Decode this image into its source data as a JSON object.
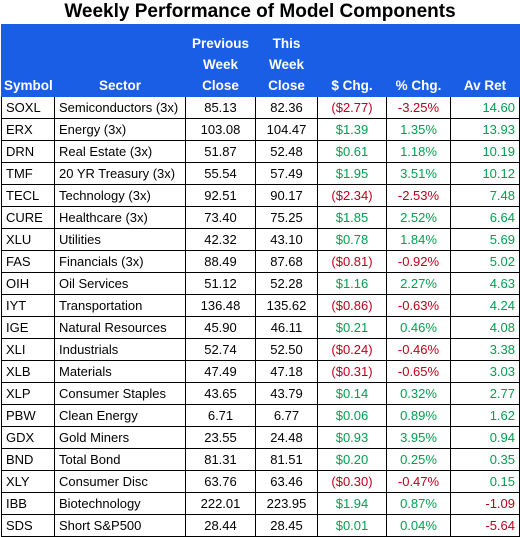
{
  "title": "Weekly Performance of Model Components",
  "headers": {
    "symbol": "Symbol",
    "sector": "Sector",
    "prev_line1": "Previous",
    "prev_line2": "Week",
    "prev_line3": "Close",
    "this_line1": "This",
    "this_line2": "Week",
    "this_line3": "Close",
    "chg": "$ Chg.",
    "pct": "% Chg.",
    "avret": "Av Ret"
  },
  "colors": {
    "header_bg": "#1a5ee6",
    "positive": "#00a050",
    "negative": "#c0001a"
  },
  "rows": [
    {
      "symbol": "SOXL",
      "sector": "Semiconductors (3x)",
      "prev": "85.13",
      "cur": "82.36",
      "chg": "($2.77)",
      "pct": "-3.25%",
      "avret": "14.60"
    },
    {
      "symbol": "ERX",
      "sector": "Energy (3x)",
      "prev": "103.08",
      "cur": "104.47",
      "chg": "$1.39",
      "pct": "1.35%",
      "avret": "13.93"
    },
    {
      "symbol": "DRN",
      "sector": "Real Estate (3x)",
      "prev": "51.87",
      "cur": "52.48",
      "chg": "$0.61",
      "pct": "1.18%",
      "avret": "10.19"
    },
    {
      "symbol": "TMF",
      "sector": "20 YR Treasury (3x)",
      "prev": "55.54",
      "cur": "57.49",
      "chg": "$1.95",
      "pct": "3.51%",
      "avret": "10.12"
    },
    {
      "symbol": "TECL",
      "sector": "Technology (3x)",
      "prev": "92.51",
      "cur": "90.17",
      "chg": "($2.34)",
      "pct": "-2.53%",
      "avret": "7.48"
    },
    {
      "symbol": "CURE",
      "sector": "Healthcare (3x)",
      "prev": "73.40",
      "cur": "75.25",
      "chg": "$1.85",
      "pct": "2.52%",
      "avret": "6.64"
    },
    {
      "symbol": "XLU",
      "sector": "Utilities",
      "prev": "42.32",
      "cur": "43.10",
      "chg": "$0.78",
      "pct": "1.84%",
      "avret": "5.69"
    },
    {
      "symbol": "FAS",
      "sector": "Financials (3x)",
      "prev": "88.49",
      "cur": "87.68",
      "chg": "($0.81)",
      "pct": "-0.92%",
      "avret": "5.02"
    },
    {
      "symbol": "OIH",
      "sector": "Oil Services",
      "prev": "51.12",
      "cur": "52.28",
      "chg": "$1.16",
      "pct": "2.27%",
      "avret": "4.63"
    },
    {
      "symbol": "IYT",
      "sector": "Transportation",
      "prev": "136.48",
      "cur": "135.62",
      "chg": "($0.86)",
      "pct": "-0.63%",
      "avret": "4.24"
    },
    {
      "symbol": "IGE",
      "sector": "Natural Resources",
      "prev": "45.90",
      "cur": "46.11",
      "chg": "$0.21",
      "pct": "0.46%",
      "avret": "4.08"
    },
    {
      "symbol": "XLI",
      "sector": "Industrials",
      "prev": "52.74",
      "cur": "52.50",
      "chg": "($0.24)",
      "pct": "-0.46%",
      "avret": "3.38"
    },
    {
      "symbol": "XLB",
      "sector": "Materials",
      "prev": "47.49",
      "cur": "47.18",
      "chg": "($0.31)",
      "pct": "-0.65%",
      "avret": "3.03"
    },
    {
      "symbol": "XLP",
      "sector": "Consumer Staples",
      "prev": "43.65",
      "cur": "43.79",
      "chg": "$0.14",
      "pct": "0.32%",
      "avret": "2.77"
    },
    {
      "symbol": "PBW",
      "sector": "Clean Energy",
      "prev": "6.71",
      "cur": "6.77",
      "chg": "$0.06",
      "pct": "0.89%",
      "avret": "1.62"
    },
    {
      "symbol": "GDX",
      "sector": "Gold Miners",
      "prev": "23.55",
      "cur": "24.48",
      "chg": "$0.93",
      "pct": "3.95%",
      "avret": "0.94"
    },
    {
      "symbol": "BND",
      "sector": "Total Bond",
      "prev": "81.31",
      "cur": "81.51",
      "chg": "$0.20",
      "pct": "0.25%",
      "avret": "0.35"
    },
    {
      "symbol": "XLY",
      "sector": "Consumer Disc",
      "prev": "63.76",
      "cur": "63.46",
      "chg": "($0.30)",
      "pct": "-0.47%",
      "avret": "0.15"
    },
    {
      "symbol": "IBB",
      "sector": "Biotechnology",
      "prev": "222.01",
      "cur": "223.95",
      "chg": "$1.94",
      "pct": "0.87%",
      "avret": "-1.09"
    },
    {
      "symbol": "SDS",
      "sector": "Short S&P500",
      "prev": "28.44",
      "cur": "28.45",
      "chg": "$0.01",
      "pct": "0.04%",
      "avret": "-5.64"
    }
  ]
}
